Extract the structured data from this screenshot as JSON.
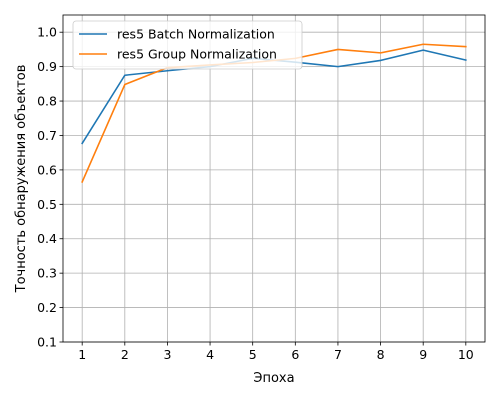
{
  "chart_data": {
    "type": "line",
    "xlabel": "Эпоха",
    "ylabel": "Точность обнаружения объектов",
    "x": [
      1,
      2,
      3,
      4,
      5,
      6,
      7,
      8,
      9,
      10
    ],
    "xlim": [
      0.55,
      10.45
    ],
    "ylim": [
      0.1,
      1.05
    ],
    "xticks": [
      1,
      2,
      3,
      4,
      5,
      6,
      7,
      8,
      9,
      10
    ],
    "xtick_labels": [
      "1",
      "2",
      "3",
      "4",
      "5",
      "6",
      "7",
      "8",
      "9",
      "10"
    ],
    "yticks": [
      0.1,
      0.2,
      0.3,
      0.4,
      0.5,
      0.6,
      0.7,
      0.8,
      0.9,
      1.0
    ],
    "ytick_labels": [
      "0.1",
      "0.2",
      "0.3",
      "0.4",
      "0.5",
      "0.6",
      "0.7",
      "0.8",
      "0.9",
      "1.0"
    ],
    "grid": true,
    "legend_position": "top-left",
    "series": [
      {
        "name": "res5 Batch Normalization",
        "color": "#1f77b4",
        "values": [
          0.677,
          0.875,
          0.888,
          0.9,
          0.924,
          0.913,
          0.9,
          0.918,
          0.948,
          0.919
        ]
      },
      {
        "name": "res5 Group Normalization",
        "color": "#ff7f0e",
        "values": [
          0.565,
          0.848,
          0.897,
          0.905,
          0.912,
          0.924,
          0.95,
          0.94,
          0.965,
          0.958
        ]
      }
    ]
  }
}
